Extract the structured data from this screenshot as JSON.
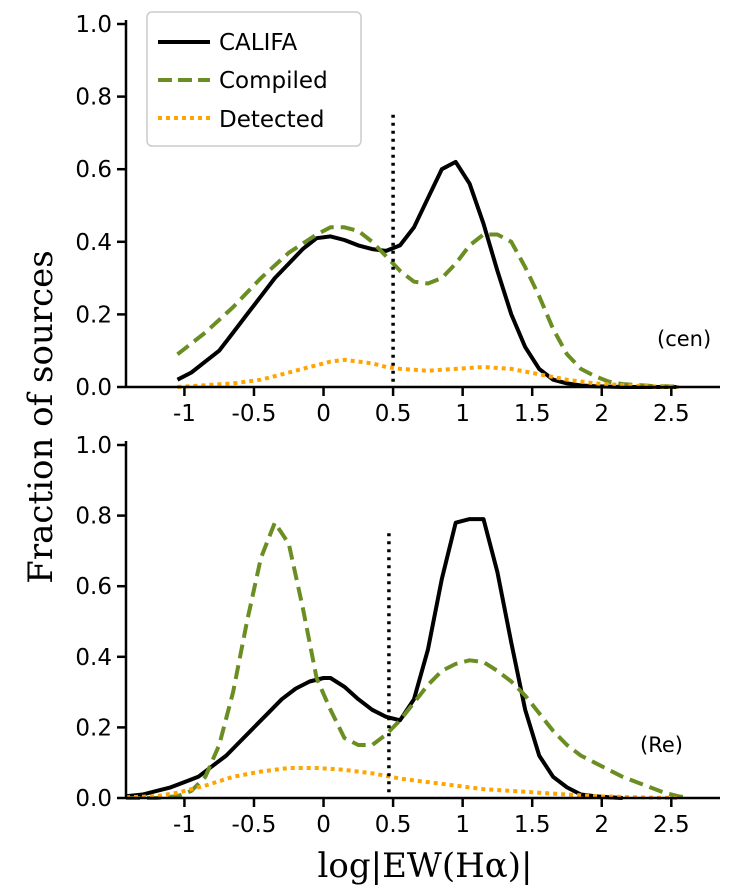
{
  "ylabel": "Fraction of sources",
  "xlabel": "log|EW(Hα)|",
  "colors": {
    "CALIFA": "#000000",
    "Compiled": "#6b8e23",
    "Detected": "#ffa500"
  },
  "legend": [
    {
      "name": "CALIFA",
      "style": "solid"
    },
    {
      "name": "Compiled",
      "style": "dashed"
    },
    {
      "name": "Detected",
      "style": "dotted"
    }
  ],
  "chart_data": [
    {
      "type": "line",
      "panel_label": "(cen)",
      "xlim": [
        -1.42,
        2.85
      ],
      "ylim": [
        0,
        1.0
      ],
      "xticks": [
        -1,
        -0.5,
        0,
        0.5,
        1,
        1.5,
        2,
        2.5
      ],
      "xtick_labels": [
        "-1",
        "-0.5",
        "0",
        "0.5",
        "1",
        "1.5",
        "2",
        "2.5"
      ],
      "yticks": [
        0,
        0.2,
        0.4,
        0.6,
        0.8,
        1.0
      ],
      "ytick_labels": [
        "0.0",
        "0.2",
        "0.4",
        "0.6",
        "0.8",
        "1.0"
      ],
      "vline_x": 0.5,
      "series": [
        {
          "name": "CALIFA",
          "x": [
            -1.05,
            -0.95,
            -0.85,
            -0.75,
            -0.65,
            -0.55,
            -0.45,
            -0.35,
            -0.25,
            -0.15,
            -0.05,
            0.05,
            0.15,
            0.25,
            0.35,
            0.45,
            0.55,
            0.65,
            0.75,
            0.85,
            0.95,
            1.05,
            1.15,
            1.25,
            1.35,
            1.45,
            1.55,
            1.65,
            1.75,
            1.85,
            1.95,
            2.05,
            2.15,
            2.25,
            2.4,
            2.55
          ],
          "y": [
            0.02,
            0.04,
            0.07,
            0.1,
            0.15,
            0.2,
            0.25,
            0.3,
            0.34,
            0.38,
            0.41,
            0.415,
            0.405,
            0.39,
            0.38,
            0.375,
            0.39,
            0.44,
            0.52,
            0.6,
            0.62,
            0.56,
            0.45,
            0.32,
            0.2,
            0.11,
            0.05,
            0.02,
            0.01,
            0.004,
            0.002,
            0.001,
            0.0,
            0.0,
            0.0,
            0.0
          ]
        },
        {
          "name": "Compiled",
          "x": [
            -1.05,
            -0.85,
            -0.65,
            -0.45,
            -0.25,
            -0.05,
            0.05,
            0.15,
            0.25,
            0.35,
            0.45,
            0.55,
            0.65,
            0.75,
            0.85,
            0.95,
            1.05,
            1.15,
            1.25,
            1.35,
            1.45,
            1.55,
            1.65,
            1.75,
            1.85,
            1.95,
            2.05,
            2.15,
            2.35,
            2.55
          ],
          "y": [
            0.09,
            0.15,
            0.22,
            0.3,
            0.37,
            0.42,
            0.44,
            0.44,
            0.43,
            0.4,
            0.36,
            0.32,
            0.29,
            0.285,
            0.3,
            0.34,
            0.39,
            0.42,
            0.42,
            0.4,
            0.33,
            0.25,
            0.16,
            0.09,
            0.05,
            0.03,
            0.015,
            0.008,
            0.003,
            0.001
          ]
        },
        {
          "name": "Detected",
          "x": [
            -1.05,
            -0.85,
            -0.65,
            -0.45,
            -0.25,
            -0.05,
            0.05,
            0.15,
            0.25,
            0.35,
            0.45,
            0.55,
            0.75,
            0.95,
            1.15,
            1.35,
            1.55,
            1.75,
            1.95,
            2.15,
            2.35,
            2.55
          ],
          "y": [
            0.0,
            0.005,
            0.01,
            0.02,
            0.04,
            0.06,
            0.07,
            0.075,
            0.07,
            0.065,
            0.055,
            0.05,
            0.045,
            0.05,
            0.055,
            0.05,
            0.035,
            0.02,
            0.01,
            0.005,
            0.002,
            0.0
          ]
        }
      ]
    },
    {
      "type": "line",
      "panel_label": "(Re)",
      "xlim": [
        -1.42,
        2.85
      ],
      "ylim": [
        0,
        1.0
      ],
      "xticks": [
        -1,
        -0.5,
        0,
        0.5,
        1,
        1.5,
        2,
        2.5
      ],
      "xtick_labels": [
        "-1",
        "-0.5",
        "0",
        "0.5",
        "1",
        "1.5",
        "2",
        "2.5"
      ],
      "yticks": [
        0,
        0.2,
        0.4,
        0.6,
        0.8,
        1.0
      ],
      "ytick_labels": [
        "0.0",
        "0.2",
        "0.4",
        "0.6",
        "0.8",
        "1.0"
      ],
      "vline_x": 0.47,
      "series": [
        {
          "name": "CALIFA",
          "x": [
            -1.42,
            -1.3,
            -1.2,
            -1.1,
            -1.0,
            -0.9,
            -0.8,
            -0.7,
            -0.6,
            -0.5,
            -0.4,
            -0.3,
            -0.2,
            -0.1,
            0.0,
            0.05,
            0.15,
            0.25,
            0.35,
            0.45,
            0.55,
            0.65,
            0.75,
            0.85,
            0.95,
            1.05,
            1.15,
            1.25,
            1.35,
            1.45,
            1.55,
            1.65,
            1.75,
            1.85,
            1.95,
            2.05,
            2.15
          ],
          "y": [
            0.005,
            0.01,
            0.02,
            0.03,
            0.045,
            0.06,
            0.09,
            0.12,
            0.16,
            0.2,
            0.24,
            0.28,
            0.31,
            0.33,
            0.34,
            0.34,
            0.315,
            0.28,
            0.25,
            0.23,
            0.22,
            0.28,
            0.42,
            0.62,
            0.78,
            0.79,
            0.79,
            0.64,
            0.44,
            0.25,
            0.12,
            0.06,
            0.03,
            0.01,
            0.005,
            0.002,
            0.0
          ]
        },
        {
          "name": "Compiled",
          "x": [
            -1.42,
            -1.2,
            -1.05,
            -0.95,
            -0.85,
            -0.75,
            -0.65,
            -0.55,
            -0.45,
            -0.35,
            -0.25,
            -0.15,
            -0.05,
            0.05,
            0.15,
            0.25,
            0.35,
            0.45,
            0.55,
            0.65,
            0.75,
            0.85,
            0.95,
            1.05,
            1.15,
            1.25,
            1.35,
            1.45,
            1.55,
            1.65,
            1.75,
            1.85,
            1.95,
            2.05,
            2.15,
            2.25,
            2.35,
            2.45,
            2.55,
            2.6
          ],
          "y": [
            0.0,
            0.0,
            0.005,
            0.02,
            0.06,
            0.15,
            0.3,
            0.5,
            0.68,
            0.78,
            0.72,
            0.54,
            0.34,
            0.25,
            0.17,
            0.15,
            0.15,
            0.18,
            0.22,
            0.27,
            0.32,
            0.36,
            0.38,
            0.39,
            0.385,
            0.36,
            0.33,
            0.29,
            0.24,
            0.19,
            0.15,
            0.12,
            0.1,
            0.08,
            0.06,
            0.045,
            0.03,
            0.015,
            0.005,
            0.002
          ]
        },
        {
          "name": "Detected",
          "x": [
            -1.42,
            -1.2,
            -1.05,
            -0.85,
            -0.65,
            -0.45,
            -0.25,
            -0.05,
            0.15,
            0.35,
            0.55,
            0.75,
            0.95,
            1.15,
            1.35,
            1.55,
            1.75,
            1.95,
            2.15,
            2.35,
            2.55
          ],
          "y": [
            0.002,
            0.005,
            0.015,
            0.035,
            0.06,
            0.075,
            0.085,
            0.085,
            0.08,
            0.07,
            0.055,
            0.045,
            0.035,
            0.025,
            0.02,
            0.015,
            0.01,
            0.005,
            0.003,
            0.001,
            0.0
          ]
        }
      ]
    }
  ]
}
